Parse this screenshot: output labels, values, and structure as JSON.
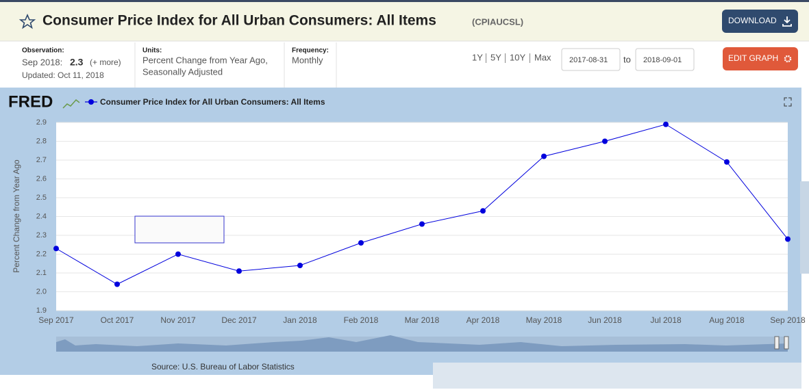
{
  "header": {
    "title": "Consumer Price Index for All Urban Consumers: All Items",
    "series_id": "(CPIAUCSL)",
    "download": "DOWNLOAD"
  },
  "meta": {
    "observation_label": "Observation:",
    "observation_date": "Sep 2018:",
    "observation_value": "2.3",
    "more": "(+ more)",
    "updated": "Updated: Oct 11, 2018",
    "units_label": "Units:",
    "units_line1": "Percent Change from Year Ago,",
    "units_line2": "Seasonally Adjusted",
    "frequency_label": "Frequency:",
    "frequency": "Monthly"
  },
  "controls": {
    "ranges": [
      "1Y",
      "5Y",
      "10Y",
      "Max"
    ],
    "start": "2017-08-31",
    "to": "to",
    "end": "2018-09-01",
    "edit": "EDIT GRAPH"
  },
  "chart_data": {
    "type": "line",
    "logo": "FRED",
    "ylabel": "Percent Change from Year Ago",
    "source": "Source: U.S. Bureau of Labor Statistics",
    "categories": [
      "Sep 2017",
      "Oct 2017",
      "Nov 2017",
      "Dec 2017",
      "Jan 2018",
      "Feb 2018",
      "Mar 2018",
      "Apr 2018",
      "May 2018",
      "Jun 2018",
      "Jul 2018",
      "Aug 2018",
      "Sep 2018"
    ],
    "series": [
      {
        "name": "Consumer Price Index for All Urban Consumers: All Items",
        "color": "#0000dd",
        "values": [
          2.23,
          2.04,
          2.2,
          2.11,
          2.14,
          2.26,
          2.36,
          2.43,
          2.72,
          2.8,
          2.89,
          2.69,
          2.28
        ]
      }
    ],
    "ylim": [
      1.9,
      2.9
    ],
    "yticks": [
      1.9,
      {
        "value": 2,
        "label": "2.0"
      },
      2.1,
      2.2,
      2.3,
      2.4,
      2.5,
      2.6,
      2.7,
      2.8,
      2.9
    ],
    "grid": true
  }
}
